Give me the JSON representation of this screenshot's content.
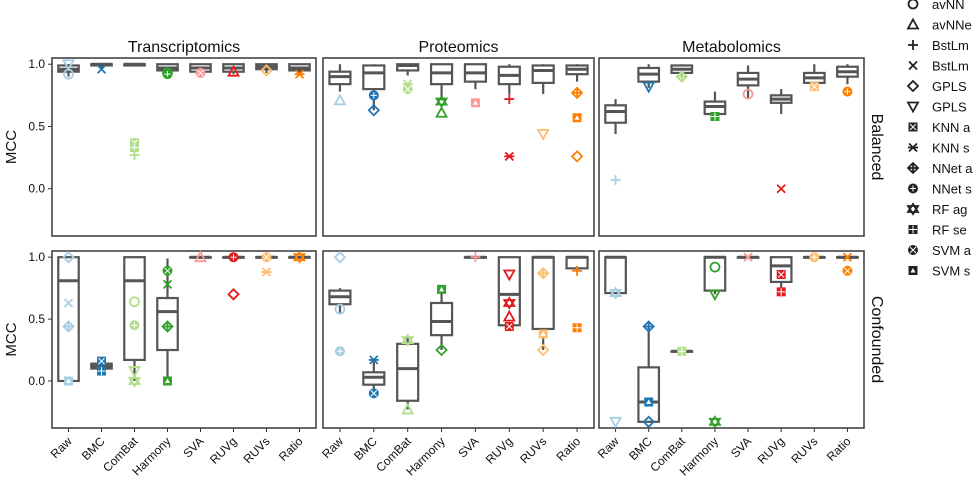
{
  "figure": {
    "ylabel": "MCC",
    "columns": [
      "Transcriptomics",
      "Proteomics",
      "Metabolomics"
    ],
    "rows": [
      "Balanced",
      "Confounded"
    ],
    "methods": [
      "Raw",
      "BMC",
      "ComBat",
      "Harmony",
      "SVA",
      "RUVg",
      "RUVs",
      "Ratio"
    ],
    "method_colors": [
      "#a6cee3",
      "#1f78b4",
      "#b2df8a",
      "#33a02c",
      "#fb9a99",
      "#e31a1c",
      "#fdbf6f",
      "#ff7f00"
    ],
    "yticks": [
      "0.0",
      "0.5",
      "1.0"
    ],
    "legend": [
      {
        "label": "avNN",
        "marker": "circle-open"
      },
      {
        "label": "avNNe",
        "marker": "triangle-open"
      },
      {
        "label": "BstLm",
        "marker": "plus"
      },
      {
        "label": "BstLm",
        "marker": "cross"
      },
      {
        "label": "GPLS",
        "marker": "diamond-open"
      },
      {
        "label": "GPLS",
        "marker": "triangle-down-open"
      },
      {
        "label": "KNN a",
        "marker": "square-cross"
      },
      {
        "label": "KNN s",
        "marker": "asterisk"
      },
      {
        "label": "NNet a",
        "marker": "diamond-plus"
      },
      {
        "label": "NNet s",
        "marker": "circle-plus"
      },
      {
        "label": "RF ag",
        "marker": "star-of-david"
      },
      {
        "label": "RF se",
        "marker": "square-plus"
      },
      {
        "label": "SVM a",
        "marker": "circle-cross"
      },
      {
        "label": "SVM s",
        "marker": "square-triangle"
      }
    ]
  },
  "chart_data": {
    "type": "box",
    "ylim": [
      -0.38,
      1.05
    ],
    "grid": false,
    "legend_position": "right",
    "panels": [
      {
        "row": "Balanced",
        "column": "Transcriptomics",
        "boxes": [
          {
            "method": "Raw",
            "q1": 0.94,
            "median": 0.96,
            "q3": 0.99,
            "whisker_low": 0.9,
            "whisker_high": 1.0,
            "points": [
              0.92,
              1.0
            ]
          },
          {
            "method": "BMC",
            "q1": 0.99,
            "median": 1.0,
            "q3": 1.0,
            "whisker_low": 0.96,
            "whisker_high": 1.0,
            "points": [
              0.96
            ]
          },
          {
            "method": "ComBat",
            "q1": 0.99,
            "median": 1.0,
            "q3": 1.0,
            "whisker_low": 0.99,
            "whisker_high": 1.0,
            "points": [
              0.37,
              0.33,
              0.27
            ]
          },
          {
            "method": "Harmony",
            "q1": 0.95,
            "median": 0.97,
            "q3": 1.0,
            "whisker_low": 0.9,
            "whisker_high": 1.0,
            "points": [
              0.92,
              0.93
            ]
          },
          {
            "method": "SVA",
            "q1": 0.94,
            "median": 0.97,
            "q3": 1.0,
            "whisker_low": 0.91,
            "whisker_high": 1.0,
            "points": [
              0.93
            ]
          },
          {
            "method": "RUVg",
            "q1": 0.94,
            "median": 0.97,
            "q3": 1.0,
            "whisker_low": 0.92,
            "whisker_high": 1.0,
            "points": [
              0.94
            ]
          },
          {
            "method": "RUVs",
            "q1": 0.96,
            "median": 0.98,
            "q3": 1.0,
            "whisker_low": 0.93,
            "whisker_high": 1.0,
            "points": [
              0.95
            ]
          },
          {
            "method": "Ratio",
            "q1": 0.95,
            "median": 0.97,
            "q3": 1.0,
            "whisker_low": 0.91,
            "whisker_high": 1.0,
            "points": [
              0.92
            ]
          }
        ]
      },
      {
        "row": "Balanced",
        "column": "Proteomics",
        "boxes": [
          {
            "method": "Raw",
            "q1": 0.84,
            "median": 0.9,
            "q3": 0.94,
            "whisker_low": 0.78,
            "whisker_high": 1.0,
            "points": [
              0.71
            ]
          },
          {
            "method": "BMC",
            "q1": 0.8,
            "median": 0.93,
            "q3": 0.99,
            "whisker_low": 0.63,
            "whisker_high": 1.0,
            "points": [
              0.63,
              0.75
            ]
          },
          {
            "method": "ComBat",
            "q1": 0.95,
            "median": 0.99,
            "q3": 1.0,
            "whisker_low": 0.91,
            "whisker_high": 1.0,
            "points": [
              0.84,
              0.8
            ]
          },
          {
            "method": "Harmony",
            "q1": 0.84,
            "median": 0.93,
            "q3": 1.0,
            "whisker_low": 0.71,
            "whisker_high": 1.0,
            "points": [
              0.7,
              0.61
            ]
          },
          {
            "method": "SVA",
            "q1": 0.86,
            "median": 0.93,
            "q3": 1.0,
            "whisker_low": 0.8,
            "whisker_high": 1.0,
            "points": [
              0.69
            ]
          },
          {
            "method": "RUVg",
            "q1": 0.84,
            "median": 0.91,
            "q3": 0.98,
            "whisker_low": 0.76,
            "whisker_high": 1.0,
            "points": [
              0.72,
              0.26
            ]
          },
          {
            "method": "RUVs",
            "q1": 0.85,
            "median": 0.95,
            "q3": 0.99,
            "whisker_low": 0.76,
            "whisker_high": 1.0,
            "points": [
              0.44
            ]
          },
          {
            "method": "Ratio",
            "q1": 0.92,
            "median": 0.96,
            "q3": 0.99,
            "whisker_low": 0.86,
            "whisker_high": 1.0,
            "points": [
              0.77,
              0.57,
              0.26
            ]
          }
        ]
      },
      {
        "row": "Balanced",
        "column": "Metabolomics",
        "boxes": [
          {
            "method": "Raw",
            "q1": 0.53,
            "median": 0.62,
            "q3": 0.67,
            "whisker_low": 0.44,
            "whisker_high": 0.72,
            "points": [
              0.07
            ]
          },
          {
            "method": "BMC",
            "q1": 0.86,
            "median": 0.92,
            "q3": 0.97,
            "whisker_low": 0.81,
            "whisker_high": 1.0,
            "points": [
              0.82
            ]
          },
          {
            "method": "ComBat",
            "q1": 0.93,
            "median": 0.96,
            "q3": 0.99,
            "whisker_low": 0.9,
            "whisker_high": 1.0,
            "points": [
              0.9
            ]
          },
          {
            "method": "Harmony",
            "q1": 0.6,
            "median": 0.66,
            "q3": 0.7,
            "whisker_low": 0.56,
            "whisker_high": 0.78,
            "points": [
              0.58
            ]
          },
          {
            "method": "SVA",
            "q1": 0.83,
            "median": 0.88,
            "q3": 0.93,
            "whisker_low": 0.73,
            "whisker_high": 0.99,
            "points": [
              0.76
            ]
          },
          {
            "method": "RUVg",
            "q1": 0.69,
            "median": 0.72,
            "q3": 0.75,
            "whisker_low": 0.6,
            "whisker_high": 0.8,
            "points": [
              0.0
            ]
          },
          {
            "method": "RUVs",
            "q1": 0.85,
            "median": 0.89,
            "q3": 0.93,
            "whisker_low": 0.8,
            "whisker_high": 1.0,
            "points": [
              0.82
            ]
          },
          {
            "method": "Ratio",
            "q1": 0.9,
            "median": 0.94,
            "q3": 0.98,
            "whisker_low": 0.84,
            "whisker_high": 1.0,
            "points": [
              0.78
            ]
          }
        ]
      },
      {
        "row": "Confounded",
        "column": "Transcriptomics",
        "boxes": [
          {
            "method": "Raw",
            "q1": 0.0,
            "median": 0.81,
            "q3": 1.0,
            "whisker_low": 0.0,
            "whisker_high": 1.0,
            "points": [
              0.63,
              0.44,
              0.0,
              1.0
            ]
          },
          {
            "method": "BMC",
            "q1": 0.1,
            "median": 0.12,
            "q3": 0.14,
            "whisker_low": 0.07,
            "whisker_high": 0.16,
            "points": [
              0.16,
              0.08
            ]
          },
          {
            "method": "ComBat",
            "q1": 0.17,
            "median": 0.81,
            "q3": 1.0,
            "whisker_low": 0.0,
            "whisker_high": 1.0,
            "points": [
              0.45,
              0.64,
              0.08,
              0.0
            ]
          },
          {
            "method": "Harmony",
            "q1": 0.25,
            "median": 0.56,
            "q3": 0.67,
            "whisker_low": 0.0,
            "whisker_high": 0.99,
            "points": [
              0.89,
              0.78,
              0.44,
              0.0
            ]
          },
          {
            "method": "SVA",
            "q1": 1.0,
            "median": 1.0,
            "q3": 1.0,
            "whisker_low": 1.0,
            "whisker_high": 1.0,
            "points": [
              1.0
            ]
          },
          {
            "method": "RUVg",
            "q1": 1.0,
            "median": 1.0,
            "q3": 1.0,
            "whisker_low": 1.0,
            "whisker_high": 1.0,
            "points": [
              0.7,
              1.0
            ]
          },
          {
            "method": "RUVs",
            "q1": 1.0,
            "median": 1.0,
            "q3": 1.0,
            "whisker_low": 1.0,
            "whisker_high": 1.0,
            "points": [
              0.88,
              1.0
            ]
          },
          {
            "method": "Ratio",
            "q1": 1.0,
            "median": 1.0,
            "q3": 1.0,
            "whisker_low": 1.0,
            "whisker_high": 1.0,
            "points": [
              1.0
            ]
          }
        ]
      },
      {
        "row": "Confounded",
        "column": "Proteomics",
        "boxes": [
          {
            "method": "Raw",
            "q1": 0.62,
            "median": 0.68,
            "q3": 0.73,
            "whisker_low": 0.55,
            "whisker_high": 0.75,
            "points": [
              1.0,
              0.24,
              0.58
            ]
          },
          {
            "method": "BMC",
            "q1": -0.03,
            "median": 0.03,
            "q3": 0.07,
            "whisker_low": -0.1,
            "whisker_high": 0.17,
            "points": [
              0.17,
              -0.1
            ]
          },
          {
            "method": "ComBat",
            "q1": -0.16,
            "median": 0.1,
            "q3": 0.3,
            "whisker_low": -0.23,
            "whisker_high": 0.35,
            "points": [
              0.33,
              -0.23
            ]
          },
          {
            "method": "Harmony",
            "q1": 0.37,
            "median": 0.48,
            "q3": 0.63,
            "whisker_low": 0.25,
            "whisker_high": 0.75,
            "points": [
              0.74,
              0.25
            ]
          },
          {
            "method": "SVA",
            "q1": 1.0,
            "median": 1.0,
            "q3": 1.0,
            "whisker_low": 1.0,
            "whisker_high": 1.0,
            "points": [
              1.0
            ]
          },
          {
            "method": "RUVg",
            "q1": 0.45,
            "median": 0.7,
            "q3": 1.0,
            "whisker_low": 0.44,
            "whisker_high": 1.0,
            "points": [
              0.86,
              0.63,
              0.52,
              0.44
            ]
          },
          {
            "method": "RUVs",
            "q1": 0.42,
            "median": 1.0,
            "q3": 1.0,
            "whisker_low": 0.25,
            "whisker_high": 1.0,
            "points": [
              0.87,
              0.38,
              0.25
            ]
          },
          {
            "method": "Ratio",
            "q1": 0.91,
            "median": 1.0,
            "q3": 1.0,
            "whisker_low": 0.88,
            "whisker_high": 1.0,
            "points": [
              0.43,
              0.89
            ]
          }
        ]
      },
      {
        "row": "Confounded",
        "column": "Metabolomics",
        "boxes": [
          {
            "method": "Raw",
            "q1": 0.71,
            "median": 1.0,
            "q3": 1.0,
            "whisker_low": 0.71,
            "whisker_high": 1.0,
            "points": [
              -0.33,
              0.71
            ]
          },
          {
            "method": "BMC",
            "q1": -0.33,
            "median": -0.17,
            "q3": 0.11,
            "whisker_low": -0.33,
            "whisker_high": 0.44,
            "points": [
              0.44,
              -0.17,
              -0.33
            ]
          },
          {
            "method": "ComBat",
            "q1": 0.24,
            "median": 0.24,
            "q3": 0.24,
            "whisker_low": 0.24,
            "whisker_high": 0.24,
            "points": [
              0.24
            ]
          },
          {
            "method": "Harmony",
            "q1": 0.73,
            "median": 1.0,
            "q3": 1.0,
            "whisker_low": 0.7,
            "whisker_high": 1.0,
            "points": [
              0.92,
              0.7,
              -0.33
            ]
          },
          {
            "method": "SVA",
            "q1": 1.0,
            "median": 1.0,
            "q3": 1.0,
            "whisker_low": 1.0,
            "whisker_high": 1.0,
            "points": [
              1.0
            ]
          },
          {
            "method": "RUVg",
            "q1": 0.8,
            "median": 0.93,
            "q3": 1.0,
            "whisker_low": 0.7,
            "whisker_high": 1.0,
            "points": [
              0.86,
              0.72
            ]
          },
          {
            "method": "RUVs",
            "q1": 1.0,
            "median": 1.0,
            "q3": 1.0,
            "whisker_low": 1.0,
            "whisker_high": 1.0,
            "points": [
              1.0
            ]
          },
          {
            "method": "Ratio",
            "q1": 1.0,
            "median": 1.0,
            "q3": 1.0,
            "whisker_low": 1.0,
            "whisker_high": 1.0,
            "points": [
              0.89,
              1.0
            ]
          }
        ]
      }
    ]
  }
}
